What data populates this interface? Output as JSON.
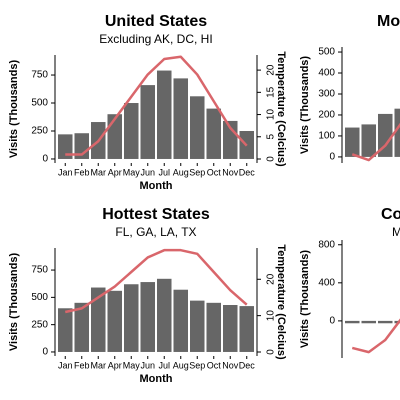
{
  "chart_data": [
    {
      "type": "combo",
      "title": "United States",
      "subtitle": "Excluding AK, DC, HI",
      "ylabel": "Visits (Thousands)",
      "y2label": "Temperature (Celcius)",
      "xlabel": "Month",
      "categories": [
        "Jan",
        "Feb",
        "Mar",
        "Apr",
        "May",
        "Jun",
        "Jul",
        "Aug",
        "Sep",
        "Oct",
        "Nov",
        "Dec"
      ],
      "ylim": [
        -36,
        929
      ],
      "yticks": [
        0,
        250,
        500,
        750
      ],
      "y2lim": [
        -0.9,
        23.4
      ],
      "y2ticks": [
        0,
        5,
        10,
        15,
        20
      ],
      "series": [
        {
          "type": "bar",
          "color": "#666666",
          "values": [
            220,
            230,
            330,
            400,
            500,
            660,
            790,
            720,
            560,
            450,
            340,
            250
          ]
        },
        {
          "type": "line",
          "axis": "y2",
          "color": "#d9666b",
          "values": [
            1,
            1,
            4,
            9,
            14,
            19,
            22.5,
            23,
            19,
            13,
            7,
            3
          ]
        }
      ]
    },
    {
      "type": "combo",
      "title": "Mo",
      "ylabel": "Visits (Thousands)",
      "ylim": [
        -29,
        524
      ],
      "yticks": [
        0,
        100,
        200,
        300,
        400,
        500
      ],
      "y2lim": [
        -10,
        30
      ],
      "series": [
        {
          "type": "bar",
          "color": "#666666",
          "values": [
            140,
            155,
            205,
            230
          ]
        },
        {
          "type": "line",
          "axis": "y2",
          "color": "#d9666b",
          "values": [
            -7,
            -9,
            -4,
            4
          ]
        }
      ]
    },
    {
      "type": "combo",
      "title": "Hottest States",
      "subtitle": "FL, GA, LA, TX",
      "ylabel": "Visits (Thousands)",
      "y2label": "Temperature (Celcius)",
      "xlabel": "Month",
      "categories": [
        "Jan",
        "Feb",
        "Mar",
        "Apr",
        "May",
        "Jun",
        "Jul",
        "Aug",
        "Sep",
        "Oct",
        "Nov",
        "Dec"
      ],
      "ylim": [
        -37,
        952
      ],
      "yticks": [
        0,
        250,
        500,
        750
      ],
      "y2lim": [
        -1.1,
        28.6
      ],
      "y2ticks": [
        0,
        10,
        20
      ],
      "series": [
        {
          "type": "bar",
          "color": "#666666",
          "values": [
            400,
            450,
            590,
            560,
            620,
            640,
            670,
            570,
            470,
            450,
            430,
            420
          ]
        },
        {
          "type": "line",
          "axis": "y2",
          "color": "#d9666b",
          "values": [
            11,
            12,
            15,
            18,
            22,
            26,
            28,
            28,
            27,
            22,
            17,
            13
          ]
        }
      ]
    },
    {
      "type": "combo",
      "title": "Co",
      "subtitle": "M",
      "ylabel": "Visits (Thousands)",
      "ylim": [
        -390,
        850
      ],
      "yticks": [
        0,
        400,
        800
      ],
      "y2lim": [
        -10,
        30
      ],
      "series": [
        {
          "type": "bar",
          "color": "#666666",
          "values": [
            -25,
            -25,
            -25,
            -25
          ]
        },
        {
          "type": "line",
          "axis": "y2",
          "color": "#d9666b",
          "values": [
            -6.6,
            -8,
            -3.9,
            3.5
          ]
        }
      ]
    }
  ]
}
